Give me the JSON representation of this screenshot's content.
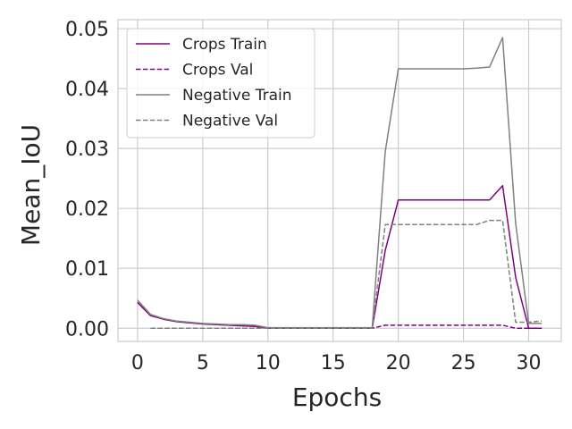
{
  "chart_data": {
    "type": "line",
    "xlabel": "Epochs",
    "ylabel": "Mean_IoU",
    "xlim": [
      -1.5,
      32.5
    ],
    "ylim": [
      -0.0022,
      0.0515
    ],
    "xticks": [
      0,
      5,
      10,
      15,
      20,
      25,
      30
    ],
    "yticks": [
      0.0,
      0.01,
      0.02,
      0.03,
      0.04,
      0.05
    ],
    "ytick_labels": [
      "0.00",
      "0.01",
      "0.02",
      "0.03",
      "0.04",
      "0.05"
    ],
    "grid": true,
    "legend_position": "upper-left",
    "series": [
      {
        "name": "Crops Train",
        "color": "#800080",
        "style": "solid",
        "x": [
          0,
          1,
          2,
          3,
          4,
          5,
          6,
          7,
          8,
          9,
          10,
          11,
          12,
          13,
          14,
          15,
          16,
          17,
          18,
          19,
          20,
          21,
          22,
          23,
          24,
          25,
          26,
          27,
          28,
          29,
          30,
          31
        ],
        "values": [
          0.0043,
          0.0021,
          0.0015,
          0.0011,
          0.0009,
          0.0007,
          0.0006,
          0.0005,
          0.0004,
          0.0003,
          0.0,
          0.0,
          0.0,
          0.0,
          0.0,
          0.0,
          0.0,
          0.0,
          0.0,
          0.013,
          0.0214,
          0.0214,
          0.0214,
          0.0214,
          0.0214,
          0.0214,
          0.0214,
          0.0214,
          0.0238,
          0.0085,
          0.0,
          0.0
        ]
      },
      {
        "name": "Crops Val",
        "color": "#800080",
        "style": "dashed",
        "x": [
          1,
          2,
          3,
          4,
          5,
          6,
          7,
          8,
          9,
          10,
          11,
          12,
          13,
          14,
          15,
          16,
          17,
          18,
          19,
          20,
          21,
          22,
          23,
          24,
          25,
          26,
          27,
          28,
          29,
          30,
          31
        ],
        "values": [
          0.0,
          0.0,
          0.0,
          0.0,
          0.0,
          0.0,
          0.0,
          0.0,
          0.0,
          0.0,
          0.0,
          0.0,
          0.0,
          0.0,
          0.0,
          0.0,
          0.0,
          0.0,
          0.0005,
          0.0005,
          0.0005,
          0.0005,
          0.0005,
          0.0005,
          0.0005,
          0.0005,
          0.0005,
          0.0005,
          0.0,
          0.0,
          0.0
        ]
      },
      {
        "name": "Negative Train",
        "color": "#808080",
        "style": "solid",
        "x": [
          0,
          1,
          2,
          3,
          4,
          5,
          6,
          7,
          8,
          9,
          10,
          11,
          12,
          13,
          14,
          15,
          16,
          17,
          18,
          19,
          20,
          21,
          22,
          23,
          24,
          25,
          26,
          27,
          28,
          29,
          30,
          31
        ],
        "values": [
          0.0047,
          0.0023,
          0.0016,
          0.0012,
          0.001,
          0.0008,
          0.0007,
          0.0006,
          0.0006,
          0.0005,
          0.0001,
          0.0001,
          0.0001,
          0.0001,
          0.0001,
          0.0001,
          0.0001,
          0.0001,
          0.0001,
          0.0295,
          0.0433,
          0.0433,
          0.0433,
          0.0433,
          0.0433,
          0.0433,
          0.0434,
          0.0436,
          0.0485,
          0.0175,
          0.0008,
          0.0008
        ]
      },
      {
        "name": "Negative Val",
        "color": "#808080",
        "style": "dashed",
        "x": [
          1,
          2,
          3,
          4,
          5,
          6,
          7,
          8,
          9,
          10,
          11,
          12,
          13,
          14,
          15,
          16,
          17,
          18,
          19,
          20,
          21,
          22,
          23,
          24,
          25,
          26,
          27,
          28,
          29,
          30,
          31
        ],
        "values": [
          0.0,
          0.0,
          0.0,
          0.0,
          0.0,
          0.0,
          0.0,
          0.0,
          0.0,
          0.0,
          0.0,
          0.0,
          0.0,
          0.0,
          0.0,
          0.0,
          0.0,
          0.0,
          0.0173,
          0.0173,
          0.0173,
          0.0173,
          0.0173,
          0.0173,
          0.0173,
          0.0173,
          0.018,
          0.018,
          0.001,
          0.001,
          0.0012
        ]
      }
    ]
  }
}
